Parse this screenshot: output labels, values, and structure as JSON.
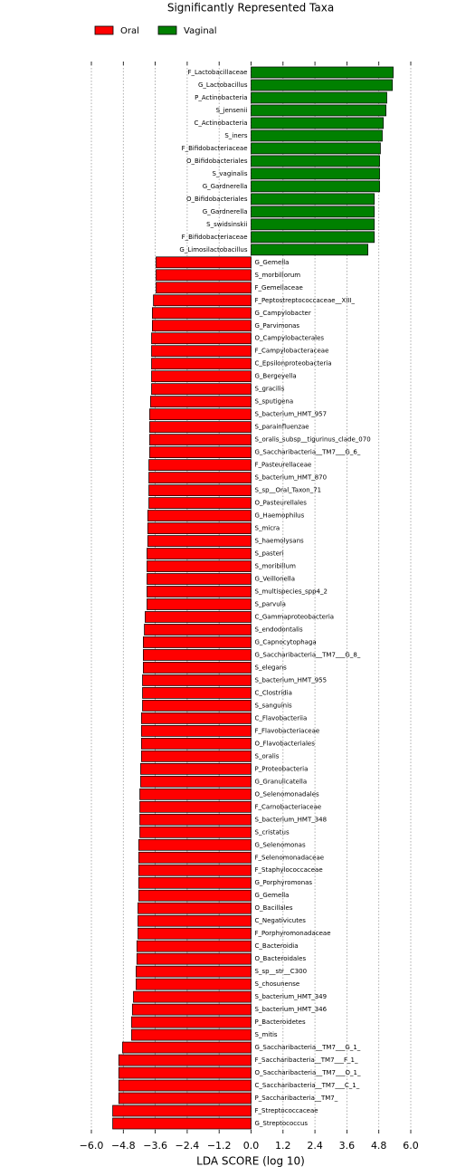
{
  "chart_data": {
    "type": "bar",
    "orientation": "horizontal",
    "title": "Significantly Represented Taxa",
    "x_label": "LDA SCORE (log 10)",
    "categories": [
      "F_Lactobacillaceae",
      "G_Lactobacillus",
      "P_Actinobacteria",
      "S_jensenii",
      "C_Actinobacteria",
      "S_iners",
      "F_Bifidobacteriaceae",
      "O_Bifidobacteriales",
      "S_vaginalis",
      "G_Gardnerella",
      "O_Bifidobacteriales",
      "G_Gardnerella",
      "S_swidsinskii",
      "F_Bifidobacteriaceae",
      "G_Limosilactobacillus",
      "G_Gemella",
      "S_morbillorum",
      "F_Gemellaceae",
      "F_Peptostreptococcaceae__XIII_",
      "G_Campylobacter",
      "G_Parvimonas",
      "O_Campylobacterales",
      "F_Campylobacteraceae",
      "C_Epsilonproteobacteria",
      "G_Bergeyella",
      "S_gracilis",
      "S_sputigena",
      "S_bacterium_HMT_957",
      "S_parainfluenzae",
      "S_oralis_subsp__tigurinus_clade_070",
      "G_Saccharibacteria__TM7___G_6_",
      "F_Pasteurellaceae",
      "S_bacterium_HMT_870",
      "S_sp__Oral_Taxon_71",
      "O_Pasteurellales",
      "G_Haemophilus",
      "S_micra",
      "S_haemolysans",
      "S_pasteri",
      "S_moribillum",
      "G_Veillonella",
      "S_multispecies_spp4_2",
      "S_parvula",
      "C_Gammaproteobacteria",
      "S_endodontalis",
      "G_Capnocytophaga",
      "G_Saccharibacteria__TM7___G_8_",
      "S_elegans",
      "S_bacterium_HMT_955",
      "C_Clostridia",
      "S_sanguinis",
      "C_Flavobacteriia",
      "F_Flavobacteriaceae",
      "O_Flavobacteriales",
      "S_oralis",
      "P_Proteobacteria",
      "G_Granulicatella",
      "O_Selenomonadales",
      "F_Carnobacteriaceae",
      "S_bacterium_HMT_348",
      "S_cristatus",
      "G_Selenomonas",
      "F_Selenomonadaceae",
      "F_Staphylococcaceae",
      "G_Porphyromonas",
      "G_Gemella",
      "O_Bacillales",
      "C_Negativicutes",
      "F_Porphyromonadaceae",
      "C_Bacteroidia",
      "O_Bacteroidales",
      "S_sp__str__C300",
      "S_chosunense",
      "S_bacterium_HMT_349",
      "S_bacterium_HMT_346",
      "P_Bacteroidetes",
      "S_mitis",
      "G_Saccharibacteria__TM7___G_1_",
      "F_Saccharibacteria__TM7___F_1_",
      "O_Saccharibacteria__TM7___O_1_",
      "C_Saccharibacteria__TM7___C_1_",
      "P_Saccharibacteria__TM7_",
      "F_Streptococcaceae",
      "G_Streptococcus"
    ],
    "series": [
      {
        "name": "Oral",
        "color": "#ff0000",
        "values": [
          null,
          null,
          null,
          null,
          null,
          null,
          null,
          null,
          null,
          null,
          null,
          null,
          null,
          null,
          null,
          -3.57,
          -3.57,
          -3.57,
          -3.67,
          -3.71,
          -3.71,
          -3.74,
          -3.74,
          -3.74,
          -3.74,
          -3.74,
          -3.78,
          -3.81,
          -3.81,
          -3.81,
          -3.81,
          -3.84,
          -3.84,
          -3.84,
          -3.84,
          -3.88,
          -3.88,
          -3.88,
          -3.91,
          -3.91,
          -3.91,
          -3.91,
          -3.91,
          -3.98,
          -4.01,
          -4.05,
          -4.05,
          -4.05,
          -4.08,
          -4.08,
          -4.08,
          -4.12,
          -4.12,
          -4.12,
          -4.12,
          -4.15,
          -4.15,
          -4.18,
          -4.18,
          -4.18,
          -4.18,
          -4.22,
          -4.22,
          -4.22,
          -4.22,
          -4.22,
          -4.25,
          -4.25,
          -4.25,
          -4.29,
          -4.29,
          -4.32,
          -4.32,
          -4.42,
          -4.46,
          -4.49,
          -4.49,
          -4.83,
          -4.97,
          -4.97,
          -4.97,
          -4.97,
          -5.2,
          -5.2
        ]
      },
      {
        "name": "Vaginal",
        "color": "#008000",
        "values": [
          5.34,
          5.31,
          5.1,
          5.07,
          4.97,
          4.93,
          4.86,
          4.83,
          4.83,
          4.83,
          4.63,
          4.63,
          4.63,
          4.63,
          4.39,
          null,
          null,
          null,
          null,
          null,
          null,
          null,
          null,
          null,
          null,
          null,
          null,
          null,
          null,
          null,
          null,
          null,
          null,
          null,
          null,
          null,
          null,
          null,
          null,
          null,
          null,
          null,
          null,
          null,
          null,
          null,
          null,
          null,
          null,
          null,
          null,
          null,
          null,
          null,
          null,
          null,
          null,
          null,
          null,
          null,
          null,
          null,
          null,
          null,
          null,
          null,
          null,
          null,
          null,
          null,
          null,
          null,
          null,
          null,
          null,
          null,
          null,
          null,
          null,
          null,
          null,
          null,
          null,
          null
        ]
      }
    ],
    "xlim": [
      -6.0,
      6.0
    ],
    "xticks": [
      {
        "value": -6.0,
        "label": "−6.0"
      },
      {
        "value": -4.8,
        "label": "−4.8"
      },
      {
        "value": -3.6,
        "label": "−3.6"
      },
      {
        "value": -2.4,
        "label": "−2.4"
      },
      {
        "value": -1.2,
        "label": "−1.2"
      },
      {
        "value": 0.0,
        "label": "0.0"
      },
      1.2,
      2.4,
      3.6,
      4.8,
      {
        "value": 6.0,
        "label": "6.0"
      }
    ],
    "grid": true,
    "legend": "top-left"
  }
}
